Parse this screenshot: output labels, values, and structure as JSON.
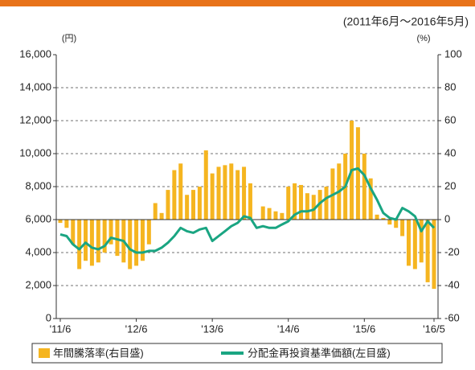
{
  "chart_data": {
    "type": "bar-line",
    "subtitle": "(2011年6月～2016年5月)",
    "y_unit": "(円)",
    "y2_unit": "(%)",
    "categories": [
      "'11/6",
      null,
      null,
      null,
      null,
      null,
      null,
      null,
      null,
      null,
      null,
      null,
      "'12/6",
      null,
      null,
      null,
      null,
      null,
      null,
      null,
      null,
      null,
      null,
      null,
      "'13/6",
      null,
      null,
      null,
      null,
      null,
      null,
      null,
      null,
      null,
      null,
      null,
      "'14/6",
      null,
      null,
      null,
      null,
      null,
      null,
      null,
      null,
      null,
      null,
      null,
      "'15/6",
      null,
      null,
      null,
      null,
      null,
      null,
      null,
      null,
      null,
      null,
      "'16/5"
    ],
    "series": [
      {
        "name": "年間騰落率(右目盛)",
        "color": "#f5b520",
        "axis": "y2",
        "kind": "bar",
        "values": [
          -2,
          -5,
          -15,
          -30,
          -25,
          -28,
          -26,
          -20,
          -15,
          -22,
          -26,
          -30,
          -28,
          -25,
          -15,
          10,
          4,
          18,
          30,
          34,
          15,
          18,
          20,
          42,
          28,
          32,
          33,
          34,
          30,
          32,
          22,
          0,
          8,
          7,
          5,
          4,
          20,
          22,
          21,
          16,
          15,
          18,
          20,
          31,
          34,
          40,
          60,
          56,
          40,
          25,
          3,
          1,
          -3,
          -5,
          -10,
          -28,
          -30,
          -26,
          -38,
          -42
        ]
      },
      {
        "name": "分配金再投資基準価額(左目盛)",
        "color": "#1aa582",
        "axis": "y",
        "kind": "line",
        "values": [
          5100,
          5000,
          4500,
          4200,
          4600,
          4300,
          4200,
          4400,
          4900,
          4800,
          4700,
          4200,
          4000,
          4000,
          4100,
          4100,
          4300,
          4600,
          5000,
          5500,
          5300,
          5200,
          5400,
          5500,
          4700,
          5000,
          5300,
          5600,
          5800,
          6200,
          6100,
          5500,
          5600,
          5500,
          5500,
          5700,
          5900,
          6300,
          6500,
          6500,
          6600,
          7000,
          7300,
          7500,
          7700,
          8000,
          9000,
          9100,
          8700,
          7900,
          7200,
          6400,
          6100,
          6000,
          6700,
          6500,
          6200,
          5300,
          5900,
          5500
        ]
      }
    ],
    "ylim": [
      0,
      16000
    ],
    "yticks": [
      0,
      {
        "value": 2000,
        "label": "2,000"
      },
      {
        "value": 4000,
        "label": "4,000"
      },
      {
        "value": 6000,
        "label": "6,000"
      },
      {
        "value": 8000,
        "label": "8,000"
      },
      {
        "value": 10000,
        "label": "10,000"
      },
      {
        "value": 12000,
        "label": "12,000"
      },
      {
        "value": 14000,
        "label": "14,000"
      },
      {
        "value": 16000,
        "label": "16,000"
      }
    ],
    "y2lim": [
      -60,
      100
    ],
    "y2ticks": [
      -60,
      -40,
      -20,
      0,
      20,
      40,
      60,
      80,
      100
    ],
    "grid": true
  }
}
